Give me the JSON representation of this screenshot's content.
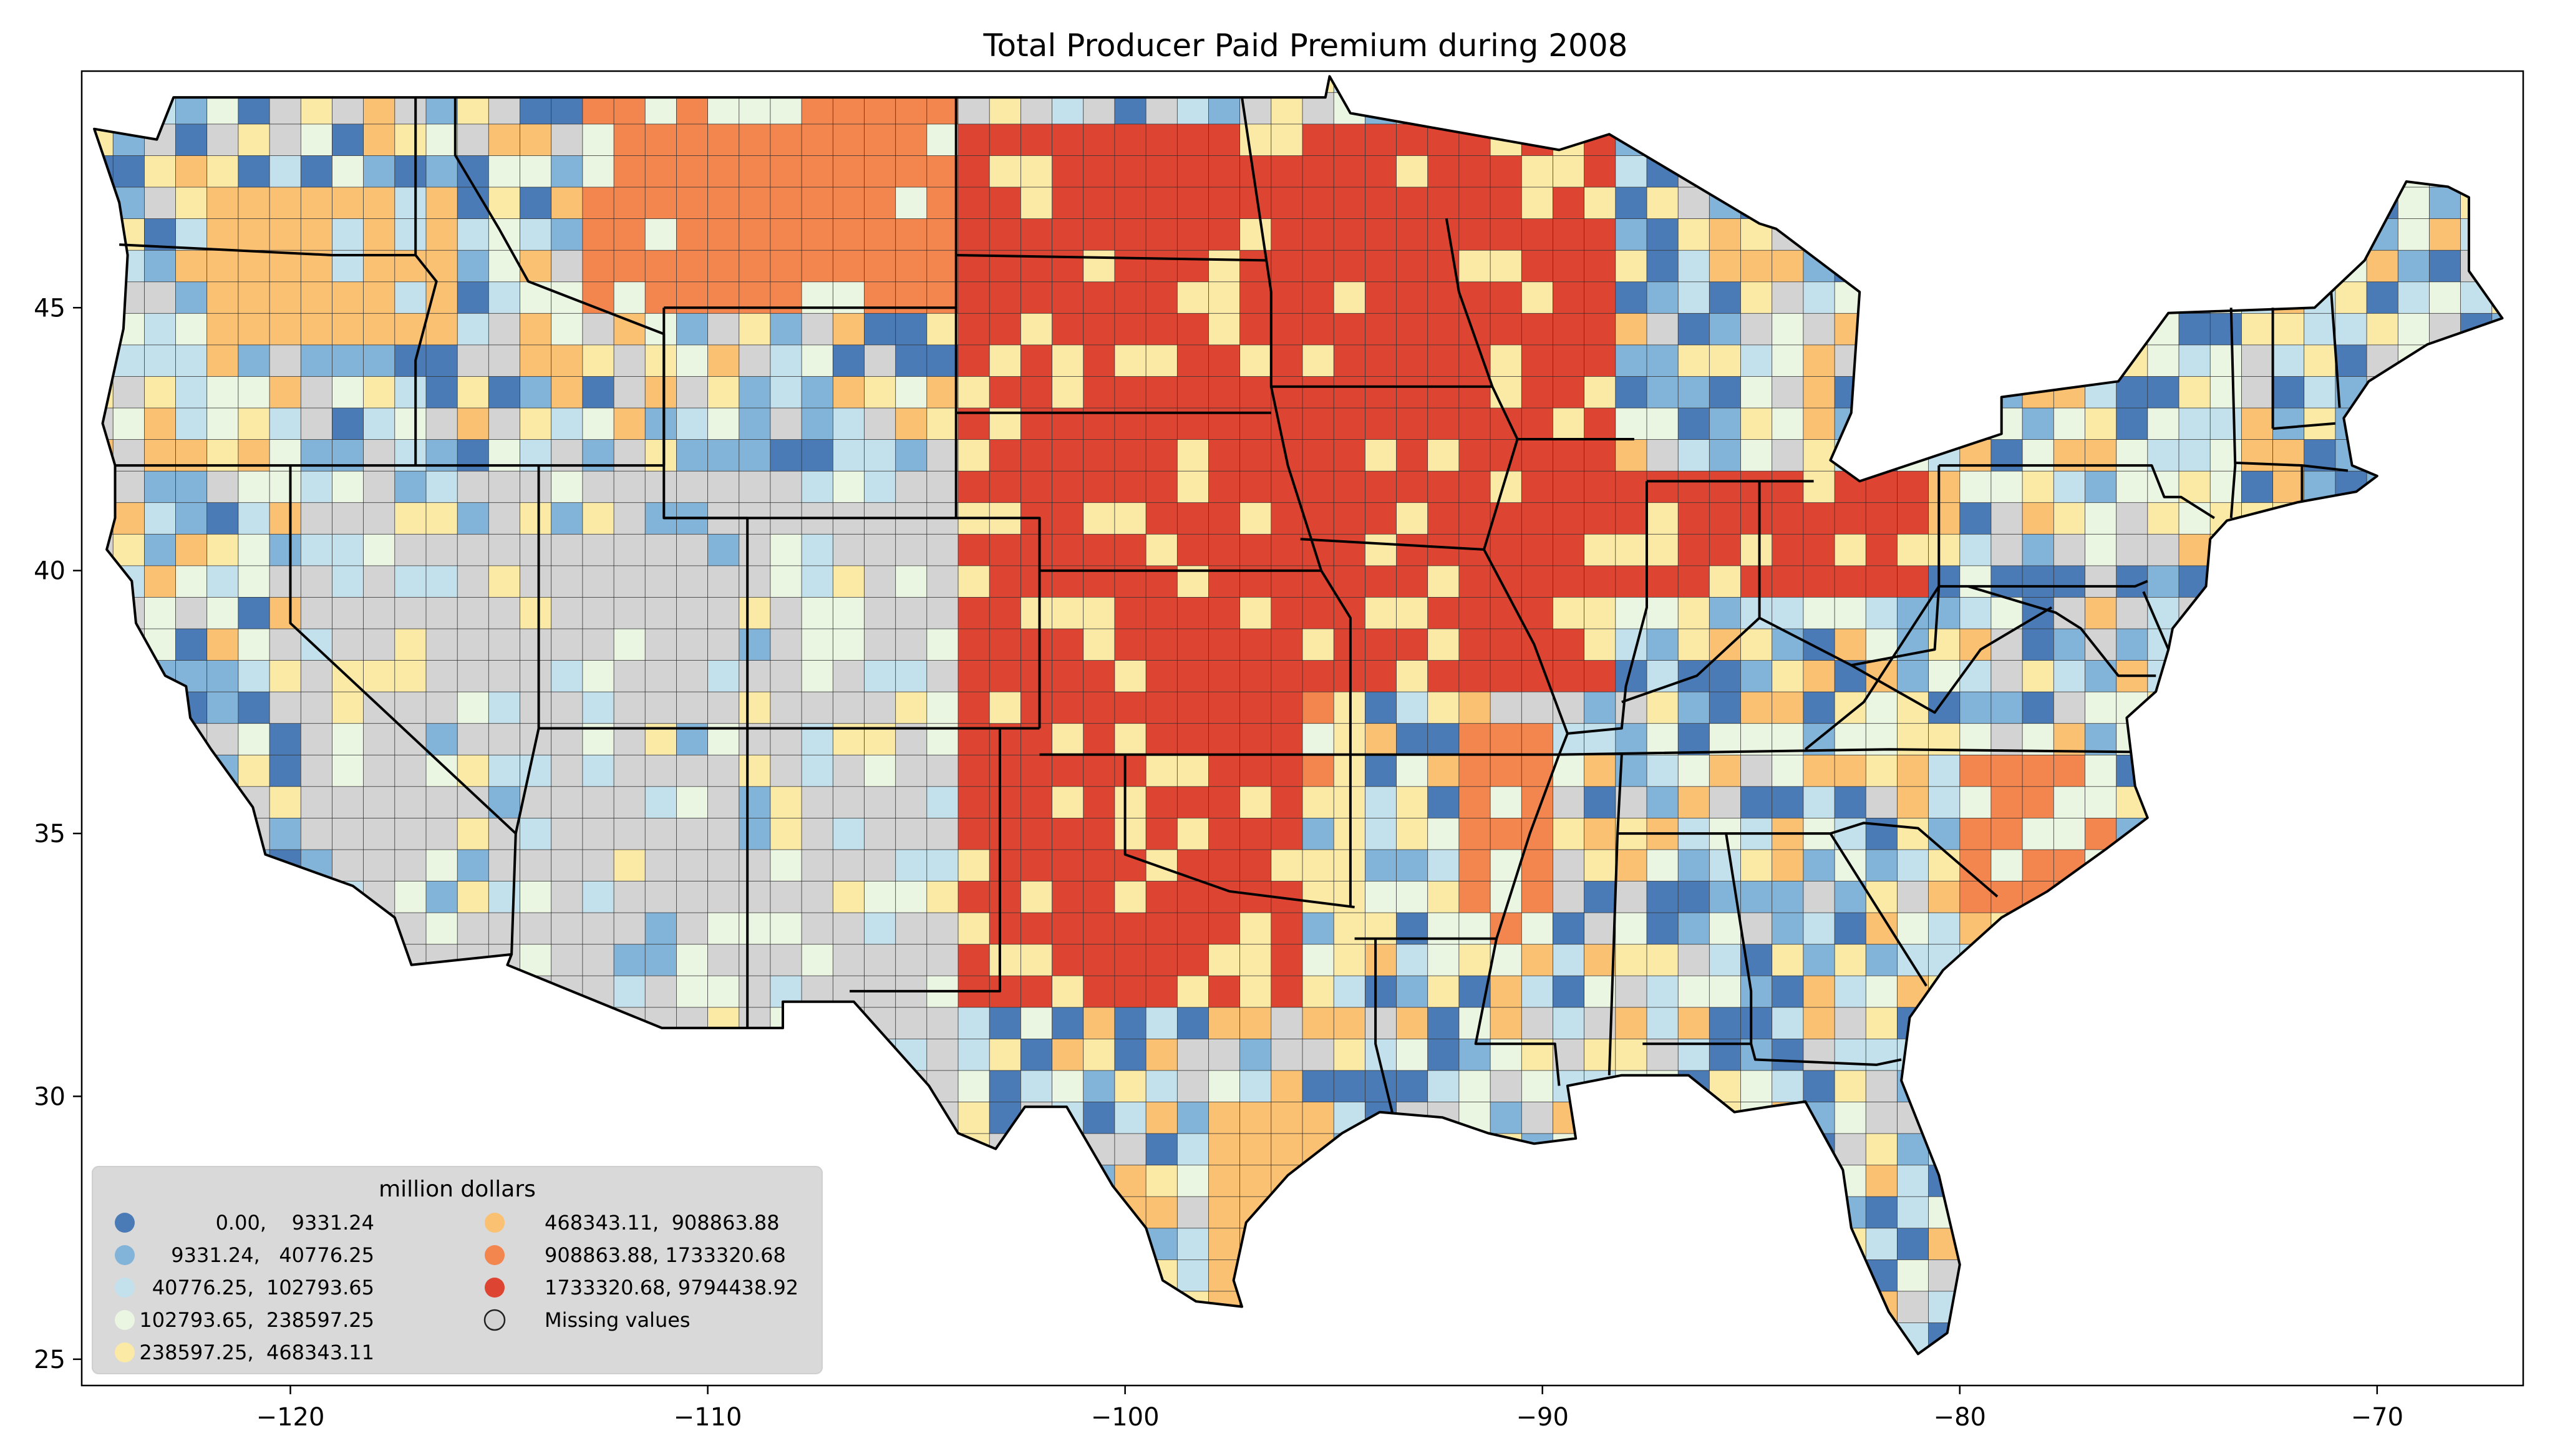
{
  "title": "Total Producer Paid Premium during 2008",
  "map": {
    "projection": "plate-carree",
    "lon_range": [
      -125,
      -66.5
    ],
    "lat_range": [
      24.5,
      49.5
    ],
    "missing_color": "#d3d3d3",
    "state_border_color": "#000000",
    "x_ticks": [
      {
        "value": -120,
        "label": "−120"
      },
      {
        "value": -110,
        "label": "−110"
      },
      {
        "value": -100,
        "label": "−100"
      },
      {
        "value": -90,
        "label": "−90"
      },
      {
        "value": -80,
        "label": "−80"
      },
      {
        "value": -70,
        "label": "−70"
      }
    ],
    "y_ticks": [
      {
        "value": 25,
        "label": "25"
      },
      {
        "value": 30,
        "label": "30"
      },
      {
        "value": 35,
        "label": "35"
      },
      {
        "value": 40,
        "label": "40"
      },
      {
        "value": 45,
        "label": "45"
      }
    ]
  },
  "legend": {
    "title": "million dollars",
    "placement": "lower-left",
    "columns": 2,
    "items": [
      {
        "label": "0.00,    9331.24",
        "color": "#4a7bb7"
      },
      {
        "label": "9331.24,   40776.25",
        "color": "#82b3d8"
      },
      {
        "label": "40776.25,  102793.65",
        "color": "#c2e1ec"
      },
      {
        "label": "102793.65,  238597.25",
        "color": "#eaf6e2"
      },
      {
        "label": "238597.25,  468343.11",
        "color": "#fbeaa5"
      },
      {
        "label": "468343.11,  908863.88",
        "color": "#fbc173"
      },
      {
        "label": "908863.88, 1733320.68",
        "color": "#f3854f"
      },
      {
        "label": "1733320.68, 9794438.92",
        "color": "#de4432"
      },
      {
        "label": "Missing values",
        "color": "#d3d3d3"
      }
    ]
  }
}
